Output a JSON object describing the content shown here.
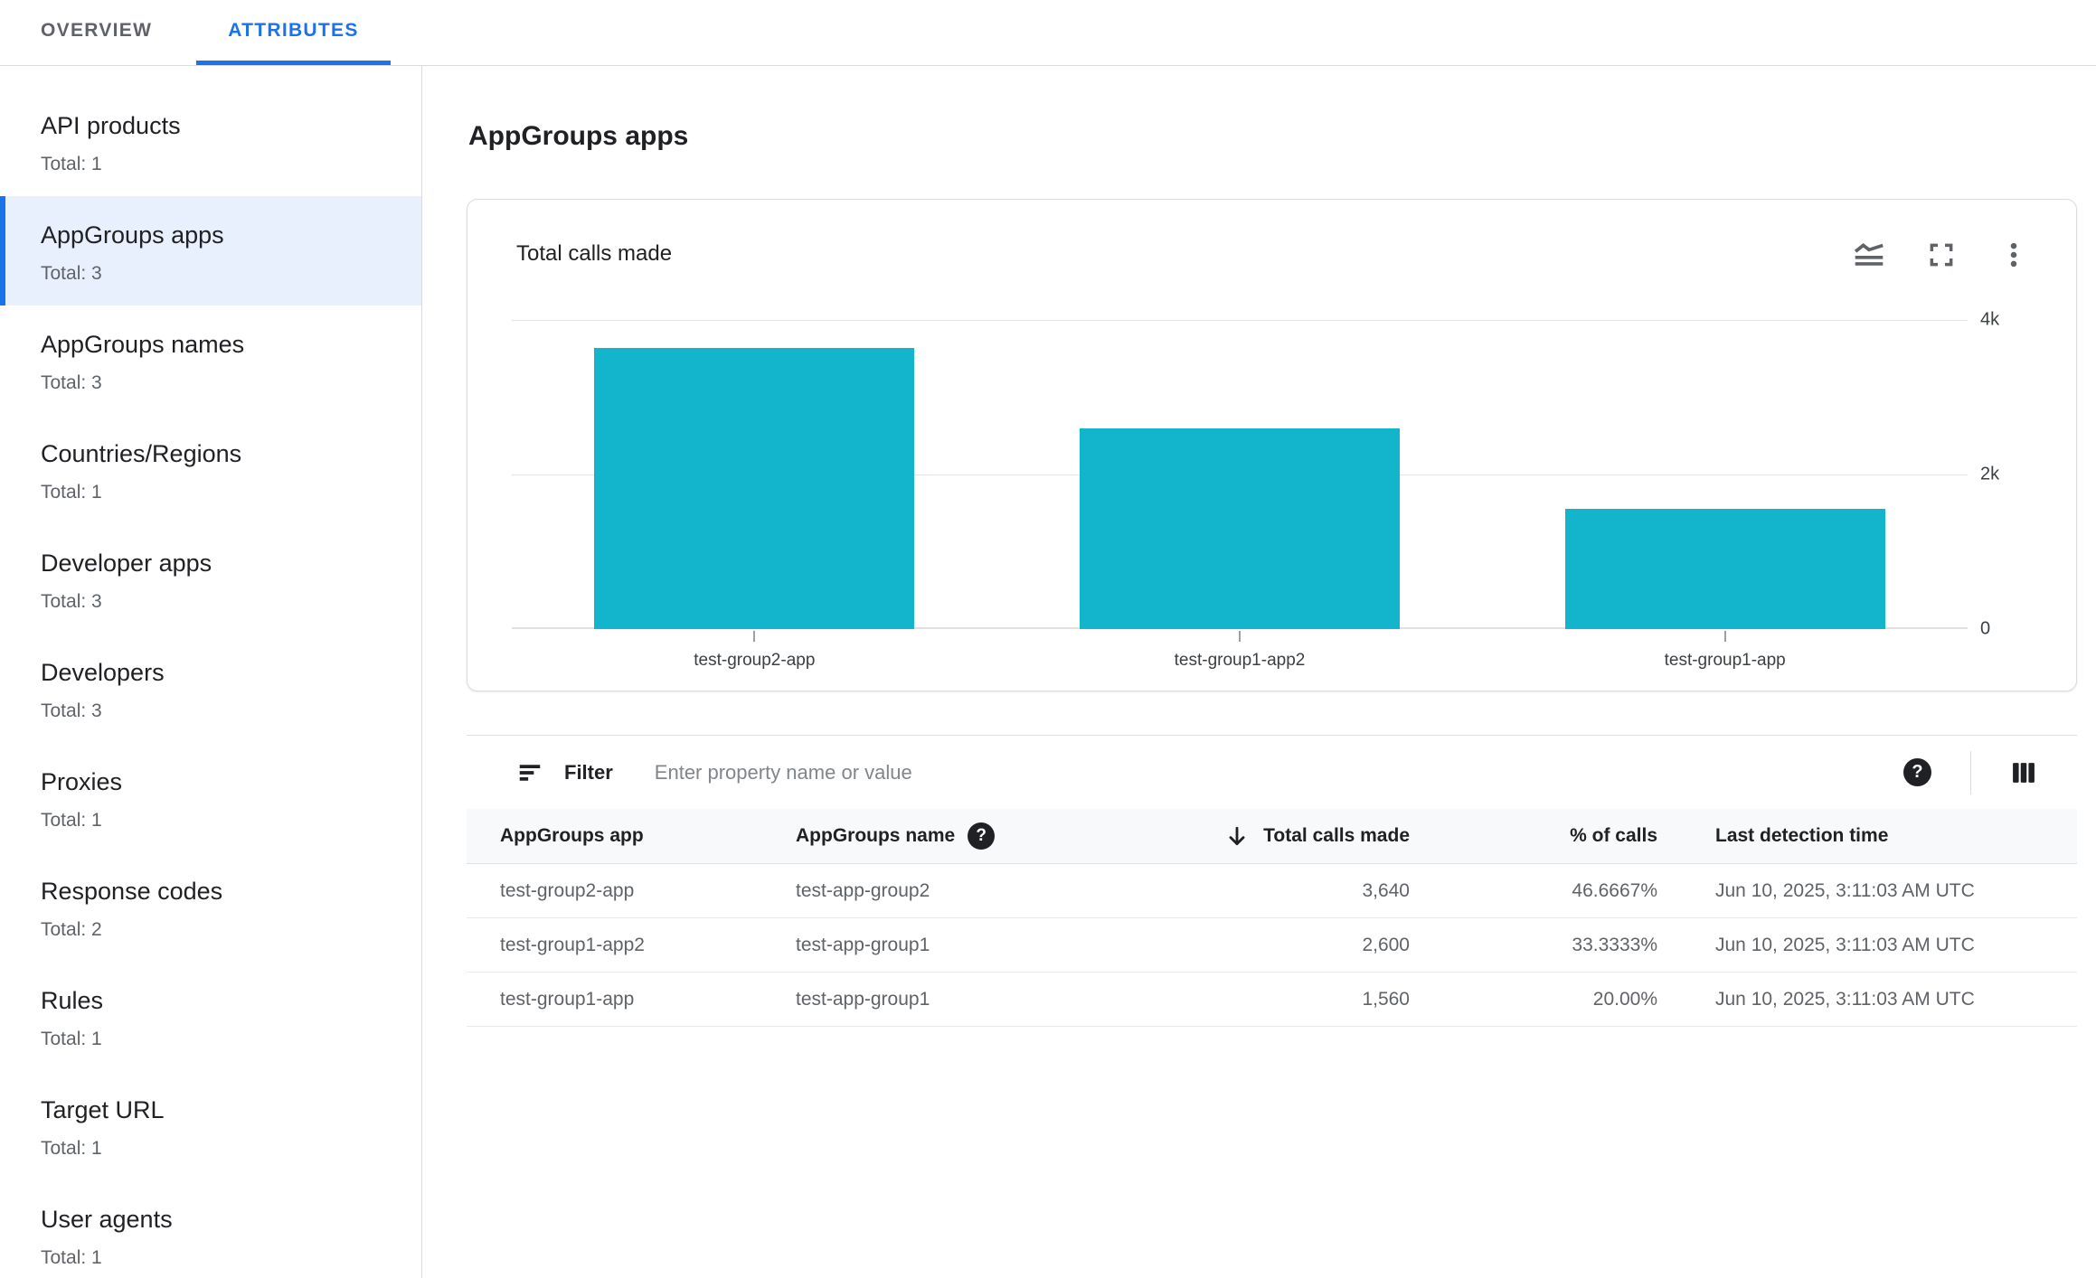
{
  "tabs": {
    "overview": "OVERVIEW",
    "attributes": "ATTRIBUTES"
  },
  "sidebar": {
    "items": [
      {
        "label": "API products",
        "total": "Total: 1"
      },
      {
        "label": "AppGroups apps",
        "total": "Total: 3"
      },
      {
        "label": "AppGroups names",
        "total": "Total: 3"
      },
      {
        "label": "Countries/Regions",
        "total": "Total: 1"
      },
      {
        "label": "Developer apps",
        "total": "Total: 3"
      },
      {
        "label": "Developers",
        "total": "Total: 3"
      },
      {
        "label": "Proxies",
        "total": "Total: 1"
      },
      {
        "label": "Response codes",
        "total": "Total: 2"
      },
      {
        "label": "Rules",
        "total": "Total: 1"
      },
      {
        "label": "Target URL",
        "total": "Total: 1"
      },
      {
        "label": "User agents",
        "total": "Total: 1"
      }
    ]
  },
  "main": {
    "title": "AppGroups apps",
    "card": {
      "title": "Total calls made"
    },
    "filter": {
      "label": "Filter",
      "placeholder": "Enter property name or value",
      "help_glyph": "?"
    },
    "table": {
      "headers": {
        "app": "AppGroups app",
        "name": "AppGroups name",
        "calls": "Total calls made",
        "pct": "% of calls",
        "time": "Last detection time"
      },
      "rows": [
        {
          "app": "test-group2-app",
          "name": "test-app-group2",
          "calls": "3,640",
          "pct": "46.6667%",
          "time": "Jun 10, 2025, 3:11:03 AM UTC"
        },
        {
          "app": "test-group1-app2",
          "name": "test-app-group1",
          "calls": "2,600",
          "pct": "33.3333%",
          "time": "Jun 10, 2025, 3:11:03 AM UTC"
        },
        {
          "app": "test-group1-app",
          "name": "test-app-group1",
          "calls": "1,560",
          "pct": "20.00%",
          "time": "Jun 10, 2025, 3:11:03 AM UTC"
        }
      ]
    }
  },
  "icons": {
    "chart_type": "area-chart-icon",
    "fullscreen": "fullscreen-icon",
    "more": "more-vert-icon",
    "filter": "filter-list-icon",
    "help": "help-icon",
    "columns": "view-columns-icon",
    "sort": "arrow-down-icon"
  },
  "colors": {
    "accent_blue": "#1a73e8",
    "selected_bg": "#e8f0fe",
    "bar_teal": "#12b5cb",
    "header_bg": "#f8f9fa",
    "border": "#dadce0",
    "text_primary": "#202124",
    "text_secondary": "#5f6368"
  },
  "chart_data": {
    "type": "bar",
    "title": "Total calls made",
    "categories": [
      "test-group2-app",
      "test-group1-app2",
      "test-group1-app"
    ],
    "values": [
      3640,
      2600,
      1560
    ],
    "ylim": [
      0,
      4000
    ],
    "y_ticks": [
      "4k",
      "2k",
      "0"
    ],
    "y_axis_side": "right",
    "grid": true,
    "bar_color": "#12b5cb",
    "xlabel": "",
    "ylabel": ""
  }
}
